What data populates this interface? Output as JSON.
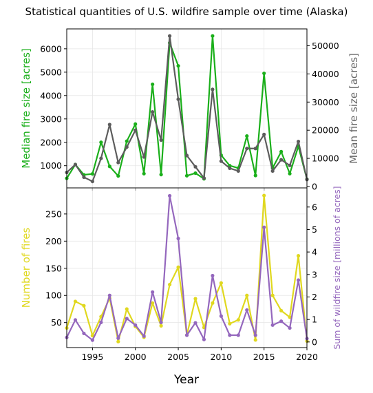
{
  "figure": {
    "title": "Statistical quantities of U.S. wildfire sample over time (Alaska)",
    "xlabel": "Year"
  },
  "chart_data": [
    {
      "type": "line",
      "panel": "top",
      "xlim": [
        1992,
        2020
      ],
      "x_ticks": [
        1995,
        2000,
        2005,
        2010,
        2015,
        2020
      ],
      "grid": true,
      "left_axis": {
        "label": "Median fire size [acres]",
        "color": "#1aaf1a",
        "ylim": [
          50,
          6850
        ],
        "ticks": [
          1000,
          2000,
          3000,
          4000,
          5000,
          6000
        ]
      },
      "right_axis": {
        "label": "Mean fire size [acres]",
        "color": "#666666",
        "ylim": [
          -500,
          56000
        ],
        "ticks": [
          0,
          10000,
          20000,
          30000,
          40000,
          50000
        ]
      },
      "x": [
        1992,
        1993,
        1994,
        1995,
        1996,
        1997,
        1998,
        1999,
        2000,
        2001,
        2002,
        2003,
        2004,
        2005,
        2006,
        2007,
        2008,
        2009,
        2010,
        2011,
        2012,
        2013,
        2014,
        2015,
        2016,
        2017,
        2018,
        2019,
        2020
      ],
      "series": [
        {
          "axis": "left",
          "color": "#1aaf1a",
          "values": [
            460,
            1050,
            610,
            650,
            2000,
            970,
            560,
            2050,
            2780,
            660,
            4480,
            620,
            6250,
            5270,
            570,
            680,
            440,
            6550,
            1450,
            1000,
            900,
            2270,
            580,
            4950,
            900,
            1600,
            660,
            1830,
            420
          ]
        },
        {
          "axis": "right",
          "color": "#5c5c5c",
          "values": [
            5000,
            7800,
            3300,
            1800,
            10000,
            22000,
            8500,
            14000,
            20000,
            10500,
            26500,
            16500,
            53500,
            31000,
            11000,
            7000,
            3000,
            34500,
            9000,
            6500,
            5500,
            13500,
            13500,
            18500,
            5500,
            9500,
            7500,
            16000,
            2500
          ]
        }
      ]
    },
    {
      "type": "line",
      "panel": "bottom",
      "xlim": [
        1992,
        2020
      ],
      "x_ticks": [
        1995,
        2000,
        2005,
        2010,
        2015,
        2020
      ],
      "grid": true,
      "left_axis": {
        "label": "Number of fires",
        "color": "#e0d81f",
        "ylim": [
          4,
          298
        ],
        "ticks": [
          50,
          100,
          150,
          200,
          250
        ]
      },
      "right_axis": {
        "label": "Sum of wildfire size [millions of acres]",
        "color": "#9467bd",
        "ylim": [
          -0.25,
          6.85
        ],
        "ticks": [
          0,
          1,
          2,
          3,
          4,
          5,
          6
        ]
      },
      "x": [
        1992,
        1993,
        1994,
        1995,
        1996,
        1997,
        1998,
        1999,
        2000,
        2001,
        2002,
        2003,
        2004,
        2005,
        2006,
        2007,
        2008,
        2009,
        2010,
        2011,
        2012,
        2013,
        2014,
        2015,
        2016,
        2017,
        2018,
        2019,
        2020
      ],
      "series": [
        {
          "axis": "left",
          "color": "#e0d81f",
          "values": [
            40,
            89,
            81,
            26,
            61,
            95,
            15,
            75,
            43,
            23,
            86,
            44,
            120,
            152,
            27,
            94,
            41,
            86,
            123,
            48,
            55,
            100,
            18,
            284,
            100,
            72,
            60,
            173,
            16
          ]
        },
        {
          "axis": "right",
          "color": "#9467bd",
          "values": [
            0.2,
            0.98,
            0.38,
            0.08,
            0.87,
            2.07,
            0.17,
            1.04,
            0.75,
            0.26,
            2.22,
            0.87,
            6.5,
            4.6,
            0.3,
            0.85,
            0.11,
            2.95,
            1.15,
            0.3,
            0.3,
            1.42,
            0.3,
            5.1,
            0.75,
            0.92,
            0.62,
            2.75,
            0.15
          ]
        }
      ]
    }
  ]
}
